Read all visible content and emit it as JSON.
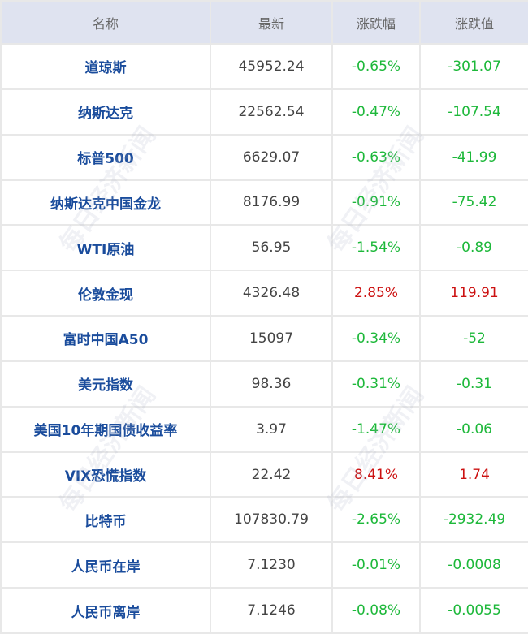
{
  "watermark": "每日经济新闻",
  "colors": {
    "header_bg": "#dfe3f0",
    "name": "#1a4c9c",
    "down": "#1db83a",
    "up": "#cc1111"
  },
  "headers": [
    "名称",
    "最新",
    "涨跌幅",
    "涨跌值"
  ],
  "rows": [
    {
      "name": "道琼斯",
      "last": "45952.24",
      "pct": "-0.65%",
      "chg": "-301.07",
      "dir": "down"
    },
    {
      "name": "纳斯达克",
      "last": "22562.54",
      "pct": "-0.47%",
      "chg": "-107.54",
      "dir": "down"
    },
    {
      "name": "标普500",
      "last": "6629.07",
      "pct": "-0.63%",
      "chg": "-41.99",
      "dir": "down"
    },
    {
      "name": "纳斯达克中国金龙",
      "last": "8176.99",
      "pct": "-0.91%",
      "chg": "-75.42",
      "dir": "down"
    },
    {
      "name": "WTI原油",
      "last": "56.95",
      "pct": "-1.54%",
      "chg": "-0.89",
      "dir": "down"
    },
    {
      "name": "伦敦金现",
      "last": "4326.48",
      "pct": "2.85%",
      "chg": "119.91",
      "dir": "up"
    },
    {
      "name": "富时中国A50",
      "last": "15097",
      "pct": "-0.34%",
      "chg": "-52",
      "dir": "down"
    },
    {
      "name": "美元指数",
      "last": "98.36",
      "pct": "-0.31%",
      "chg": "-0.31",
      "dir": "down"
    },
    {
      "name": "美国10年期国债收益率",
      "last": "3.97",
      "pct": "-1.47%",
      "chg": "-0.06",
      "dir": "down"
    },
    {
      "name": "VIX恐慌指数",
      "last": "22.42",
      "pct": "8.41%",
      "chg": "1.74",
      "dir": "up"
    },
    {
      "name": "比特币",
      "last": "107830.79",
      "pct": "-2.65%",
      "chg": "-2932.49",
      "dir": "down"
    },
    {
      "name": "人民币在岸",
      "last": "7.1230",
      "pct": "-0.01%",
      "chg": "-0.0008",
      "dir": "down"
    },
    {
      "name": "人民币离岸",
      "last": "7.1246",
      "pct": "-0.08%",
      "chg": "-0.0055",
      "dir": "down"
    }
  ]
}
